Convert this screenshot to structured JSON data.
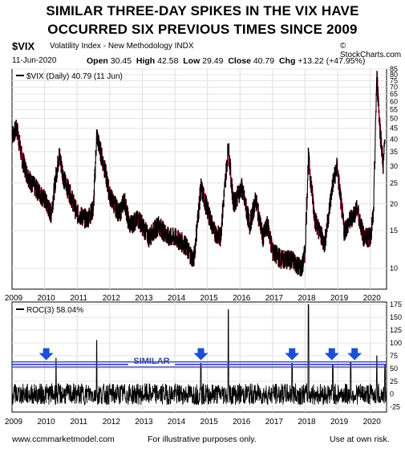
{
  "header": {
    "title_line1": "SIMILAR THREE-DAY SPIKES IN THE VIX HAVE",
    "title_line2": "OCCURRED SIX PREVIOUS TIMES SINCE 2009",
    "ticker": "$VIX",
    "ticker_name": "Volatility Index - New Methodology  INDX",
    "date": "11-Jun-2020",
    "open_label": "Open",
    "open": "30.45",
    "high_label": "High",
    "high": "42.58",
    "low_label": "Low",
    "low": "29.49",
    "close_label": "Close",
    "close": "40.79",
    "chg_label": "Chg",
    "chg": "+13.22 (+47.95%)",
    "credit": "© StockCharts.com"
  },
  "footer": {
    "left": "www.ccmmarketmodel.com",
    "center": "For illustrative purposes only.",
    "right": "Use at own risk."
  },
  "colors": {
    "up": "#000000",
    "down": "#cc0033",
    "band": "#3344aa",
    "arrow": "#1a4fd6"
  },
  "chart_data": [
    {
      "type": "line",
      "legend": "$VIX (Daily) 40.79 (11 Jun)",
      "y_scale": "log",
      "ylim": [
        8,
        85
      ],
      "yticks": [
        10,
        15,
        20,
        25,
        30,
        35,
        40,
        45,
        50,
        55,
        60,
        65,
        70,
        75,
        80,
        85
      ],
      "xlim": [
        2009.0,
        2020.5
      ],
      "xticks": [
        "2009",
        "2010",
        "2011",
        "2012",
        "2013",
        "2014",
        "2015",
        "2016",
        "2017",
        "2018",
        "2019",
        "2020"
      ],
      "x": [
        2009.0,
        2009.15,
        2009.3,
        2009.45,
        2009.6,
        2009.8,
        2010.0,
        2010.2,
        2010.35,
        2010.45,
        2010.6,
        2010.8,
        2011.0,
        2011.3,
        2011.5,
        2011.6,
        2011.7,
        2011.85,
        2012.0,
        2012.3,
        2012.45,
        2012.6,
        2012.9,
        2013.2,
        2013.5,
        2013.8,
        2014.0,
        2014.3,
        2014.58,
        2014.8,
        2014.95,
        2015.2,
        2015.4,
        2015.64,
        2015.8,
        2016.05,
        2016.3,
        2016.48,
        2016.7,
        2016.85,
        2017.0,
        2017.3,
        2017.6,
        2017.9,
        2018.0,
        2018.1,
        2018.3,
        2018.6,
        2018.85,
        2018.98,
        2019.2,
        2019.4,
        2019.6,
        2019.8,
        2020.0,
        2020.1,
        2020.2,
        2020.3,
        2020.4,
        2020.45
      ],
      "values": [
        42,
        45,
        33,
        28,
        25,
        23,
        21,
        18,
        27,
        34,
        26,
        22,
        18,
        17,
        19,
        42,
        36,
        29,
        22,
        18,
        21,
        16,
        17,
        14,
        16,
        14,
        14,
        13,
        11,
        24,
        20,
        15,
        14,
        37,
        20,
        24,
        16,
        21,
        14,
        16,
        12,
        11,
        11,
        10,
        12,
        33,
        17,
        13,
        25,
        30,
        15,
        17,
        19,
        14,
        14,
        18,
        80,
        45,
        30,
        40
      ]
    },
    {
      "type": "line",
      "legend": "ROC(3) 58.04%",
      "ylim": [
        -35,
        180
      ],
      "yticks": [
        -25,
        0,
        25,
        50,
        75,
        100,
        125,
        150,
        175
      ],
      "band_label": "SIMILAR",
      "band_range": [
        53,
        63
      ],
      "xlim": [
        2009.0,
        2020.5
      ],
      "xticks": [
        "2009",
        "2010",
        "2011",
        "2012",
        "2013",
        "2014",
        "2015",
        "2016",
        "2017",
        "2018",
        "2019",
        "2020"
      ],
      "spikes_x": [
        2010.35,
        2011.6,
        2014.8,
        2015.64,
        2017.6,
        2018.1,
        2018.85,
        2019.4,
        2020.2,
        2020.45
      ],
      "spikes_y": [
        70,
        105,
        60,
        165,
        60,
        175,
        58,
        62,
        75,
        58
      ],
      "arrows_x": [
        2010.05,
        2014.8,
        2017.6,
        2018.82,
        2019.52
      ]
    }
  ]
}
